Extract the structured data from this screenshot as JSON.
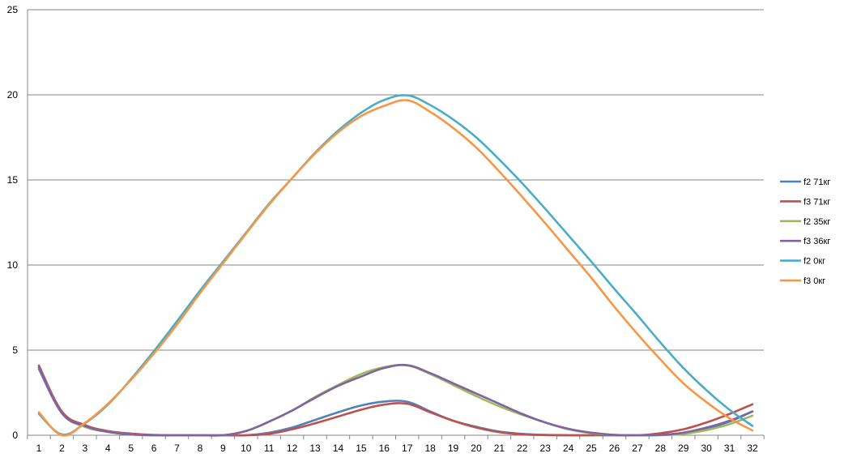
{
  "chart_data": {
    "type": "line",
    "title": "",
    "xlabel": "",
    "ylabel": "",
    "x": [
      1,
      2,
      3,
      4,
      5,
      6,
      7,
      8,
      9,
      10,
      11,
      12,
      13,
      14,
      15,
      16,
      17,
      18,
      19,
      20,
      21,
      22,
      23,
      24,
      25,
      26,
      27,
      28,
      29,
      30,
      31,
      32
    ],
    "ylim": [
      0,
      25
    ],
    "yticks": [
      "0",
      "5",
      "10",
      "15",
      "20",
      "25"
    ],
    "grid": true,
    "legend_position": "right",
    "series": [
      {
        "name": "f2 71кг",
        "color": "#4F81BD",
        "values": [
          3.9,
          1.3,
          0.5,
          0.2,
          0.05,
          0.0,
          0.0,
          0.0,
          0.0,
          0.0,
          0.15,
          0.45,
          0.9,
          1.35,
          1.75,
          1.98,
          1.97,
          1.4,
          0.85,
          0.5,
          0.22,
          0.08,
          0.02,
          0.0,
          0.0,
          0.0,
          0.0,
          0.02,
          0.15,
          0.4,
          0.8,
          1.4
        ]
      },
      {
        "name": "f3 71кг",
        "color": "#C0504D",
        "values": [
          4.1,
          1.4,
          0.6,
          0.25,
          0.1,
          0.02,
          0.0,
          0.0,
          0.0,
          0.0,
          0.08,
          0.35,
          0.7,
          1.1,
          1.5,
          1.8,
          1.85,
          1.35,
          0.85,
          0.45,
          0.18,
          0.05,
          0.01,
          0.0,
          0.0,
          0.0,
          0.0,
          0.12,
          0.35,
          0.75,
          1.25,
          1.82
        ]
      },
      {
        "name": "f2 35кг",
        "color": "#9BBB59",
        "values": [
          4.0,
          1.3,
          0.5,
          0.2,
          0.05,
          0.0,
          0.0,
          0.0,
          0.0,
          0.25,
          0.8,
          1.45,
          2.25,
          2.95,
          3.6,
          4.0,
          4.1,
          3.6,
          2.95,
          2.3,
          1.7,
          1.2,
          0.75,
          0.35,
          0.12,
          0.02,
          0.0,
          0.0,
          0.08,
          0.3,
          0.65,
          1.15
        ]
      },
      {
        "name": "f3 36кг",
        "color": "#8064A2",
        "values": [
          4.0,
          1.3,
          0.55,
          0.2,
          0.05,
          0.0,
          0.0,
          0.0,
          0.0,
          0.25,
          0.8,
          1.45,
          2.2,
          2.9,
          3.45,
          3.95,
          4.12,
          3.65,
          3.05,
          2.45,
          1.85,
          1.25,
          0.75,
          0.38,
          0.15,
          0.02,
          0.0,
          0.02,
          0.15,
          0.45,
          0.85,
          1.4
        ]
      },
      {
        "name": "f2 0кг",
        "color": "#4BACC6",
        "values": [
          1.25,
          0.05,
          0.7,
          1.8,
          3.3,
          4.95,
          6.7,
          8.5,
          10.2,
          11.9,
          13.6,
          15.1,
          16.6,
          17.9,
          18.95,
          19.7,
          19.97,
          19.4,
          18.55,
          17.5,
          16.2,
          14.8,
          13.3,
          11.75,
          10.2,
          8.6,
          7.05,
          5.45,
          3.95,
          2.65,
          1.5,
          0.55
        ]
      },
      {
        "name": "f3 0кг",
        "color": "#F79646",
        "values": [
          1.35,
          0.0,
          0.72,
          1.85,
          3.25,
          4.8,
          6.5,
          8.35,
          10.1,
          11.85,
          13.55,
          15.1,
          16.55,
          17.8,
          18.75,
          19.35,
          19.68,
          19.0,
          18.05,
          16.9,
          15.5,
          14.0,
          12.45,
          10.85,
          9.25,
          7.55,
          5.95,
          4.45,
          3.05,
          1.95,
          1.0,
          0.28
        ]
      }
    ]
  }
}
